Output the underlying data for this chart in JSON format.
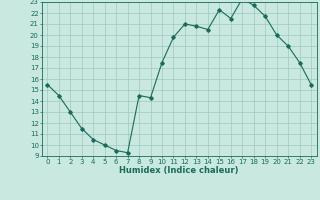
{
  "xlabel": "Humidex (Indice chaleur)",
  "ylabel": "",
  "x": [
    0,
    1,
    2,
    3,
    4,
    5,
    6,
    7,
    8,
    9,
    10,
    11,
    12,
    13,
    14,
    15,
    16,
    17,
    18,
    19,
    20,
    21,
    22,
    23
  ],
  "y": [
    15.5,
    14.5,
    13.0,
    11.5,
    10.5,
    10.0,
    9.5,
    9.3,
    14.5,
    14.3,
    17.5,
    19.8,
    21.0,
    20.8,
    20.5,
    22.3,
    21.5,
    23.3,
    22.7,
    21.7,
    20.0,
    19.0,
    17.5,
    15.5
  ],
  "line_color": "#1a6b5a",
  "marker": "D",
  "marker_size": 1.8,
  "bg_color": "#c8e8e0",
  "grid_color": "#a0c8c0",
  "xlim": [
    -0.5,
    23.5
  ],
  "ylim": [
    9,
    23
  ],
  "yticks": [
    9,
    10,
    11,
    12,
    13,
    14,
    15,
    16,
    17,
    18,
    19,
    20,
    21,
    22,
    23
  ],
  "xticks": [
    0,
    1,
    2,
    3,
    4,
    5,
    6,
    7,
    8,
    9,
    10,
    11,
    12,
    13,
    14,
    15,
    16,
    17,
    18,
    19,
    20,
    21,
    22,
    23
  ],
  "label_fontsize": 6,
  "tick_fontsize": 5
}
